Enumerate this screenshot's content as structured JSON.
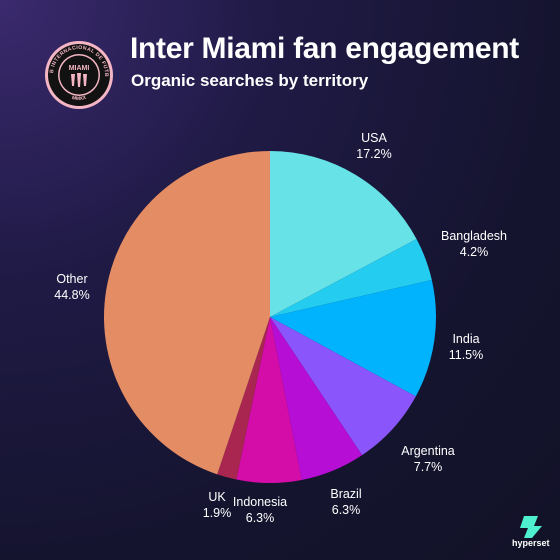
{
  "header": {
    "title": "Inter Miami fan engagement",
    "subtitle": "Organic searches by territory"
  },
  "logo": {
    "icon": "inter-miami-crest-icon",
    "ring_text": "CLUB INTERNACIONAL DE FÚTBOL",
    "center_text": "MIAMI",
    "bottom_text": "MMXX",
    "colors": {
      "ring": "#f4b6c4",
      "fill": "#121212"
    }
  },
  "brand": {
    "text": "hyperset",
    "icon": "hyperset-logo-icon",
    "color": "#4ef0d0"
  },
  "chart_data": {
    "type": "pie",
    "title": "Inter Miami fan engagement",
    "subtitle": "Organic searches by territory",
    "start": "12 o'clock",
    "direction": "clockwise",
    "slices": [
      {
        "label": "USA",
        "value": 17.2,
        "value_label": "17.2%",
        "color": "#67e3e8"
      },
      {
        "label": "Bangladesh",
        "value": 4.2,
        "value_label": "4.2%",
        "color": "#24ccef"
      },
      {
        "label": "India",
        "value": 11.5,
        "value_label": "11.5%",
        "color": "#01b2fd"
      },
      {
        "label": "Argentina",
        "value": 7.7,
        "value_label": "7.7%",
        "color": "#8a55fa"
      },
      {
        "label": "Brazil",
        "value": 6.3,
        "value_label": "6.3%",
        "color": "#b60ed4"
      },
      {
        "label": "Indonesia",
        "value": 6.3,
        "value_label": "6.3%",
        "color": "#d40da8"
      },
      {
        "label": "UK",
        "value": 1.9,
        "value_label": "1.9%",
        "color": "#a8264f"
      },
      {
        "label": "Other",
        "value": 44.8,
        "value_label": "44.8%",
        "color": "#e48c63"
      }
    ]
  }
}
